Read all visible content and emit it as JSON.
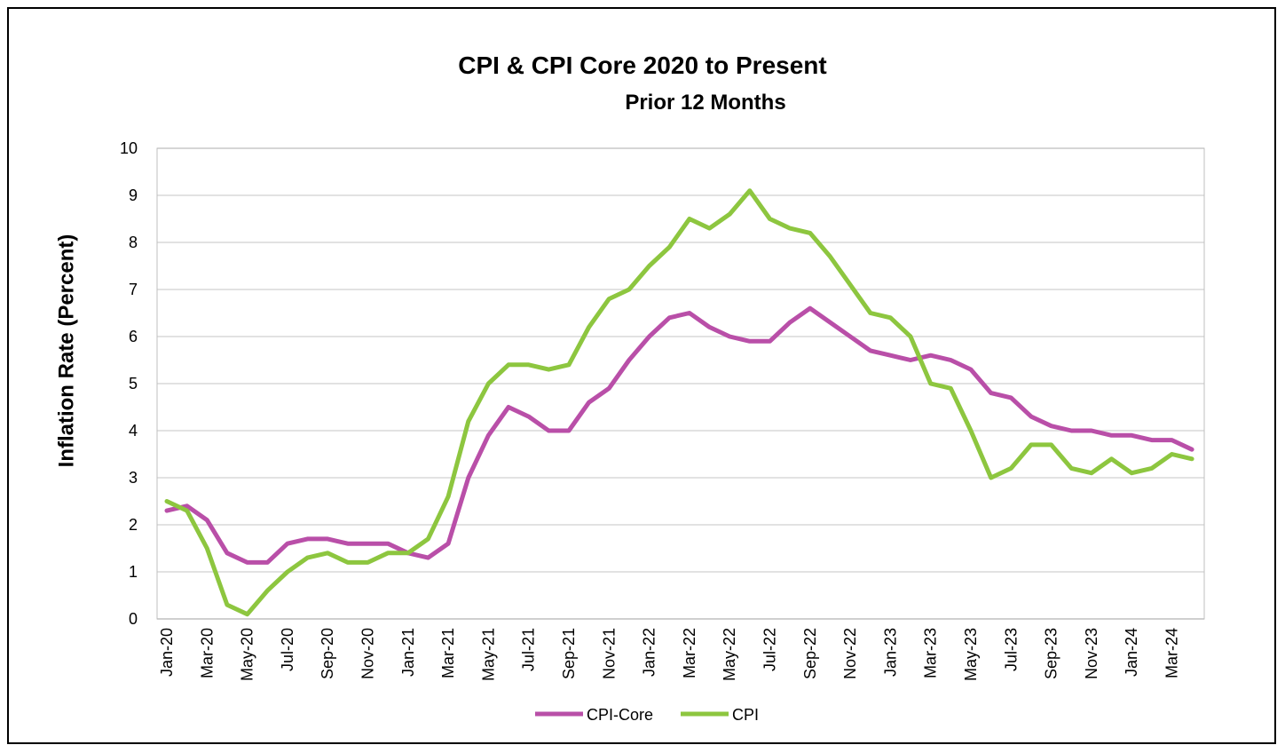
{
  "chart_data": {
    "type": "line",
    "title": "CPI & CPI Core  2020 to Present",
    "subtitle": "Prior 12 Months",
    "ylabel": "Inflation Rate (Percent)",
    "xlabel": "",
    "ylim": [
      0,
      10
    ],
    "yticks": [
      0,
      1,
      2,
      3,
      4,
      5,
      6,
      7,
      8,
      9,
      10
    ],
    "grid": true,
    "legend_position": "bottom",
    "x": [
      "Jan-20",
      "Feb-20",
      "Mar-20",
      "Apr-20",
      "May-20",
      "Jun-20",
      "Jul-20",
      "Aug-20",
      "Sep-20",
      "Oct-20",
      "Nov-20",
      "Dec-20",
      "Jan-21",
      "Feb-21",
      "Mar-21",
      "Apr-21",
      "May-21",
      "Jun-21",
      "Jul-21",
      "Aug-21",
      "Sep-21",
      "Oct-21",
      "Nov-21",
      "Dec-21",
      "Jan-22",
      "Feb-22",
      "Mar-22",
      "Apr-22",
      "May-22",
      "Jun-22",
      "Jul-22",
      "Aug-22",
      "Sep-22",
      "Oct-22",
      "Nov-22",
      "Dec-22",
      "Jan-23",
      "Feb-23",
      "Mar-23",
      "Apr-23",
      "May-23",
      "Jun-23",
      "Jul-23",
      "Aug-23",
      "Sep-23",
      "Oct-23",
      "Nov-23",
      "Dec-23",
      "Jan-24",
      "Feb-24",
      "Mar-24",
      "Apr-24"
    ],
    "tick_labels": [
      "Jan-20",
      "Mar-20",
      "May-20",
      "Jul-20",
      "Sep-20",
      "Nov-20",
      "Jan-21",
      "Mar-21",
      "May-21",
      "Jul-21",
      "Sep-21",
      "Nov-21",
      "Jan-22",
      "Mar-22",
      "May-22",
      "Jul-22",
      "Sep-22",
      "Nov-22",
      "Jan-23",
      "Mar-23",
      "May-23",
      "Jul-23",
      "Sep-23",
      "Nov-23",
      "Jan-24",
      "Mar-24"
    ],
    "series": [
      {
        "name": "CPI-Core",
        "color": "#b94fa8",
        "values": [
          2.3,
          2.4,
          2.1,
          1.4,
          1.2,
          1.2,
          1.6,
          1.7,
          1.7,
          1.6,
          1.6,
          1.6,
          1.4,
          1.3,
          1.6,
          3.0,
          3.9,
          4.5,
          4.3,
          4.0,
          4.0,
          4.6,
          4.9,
          5.5,
          6.0,
          6.4,
          6.5,
          6.2,
          6.0,
          5.9,
          5.9,
          6.3,
          6.6,
          6.3,
          6.0,
          5.7,
          5.6,
          5.5,
          5.6,
          5.5,
          5.3,
          4.8,
          4.7,
          4.3,
          4.1,
          4.0,
          4.0,
          3.9,
          3.9,
          3.8,
          3.8,
          3.6
        ]
      },
      {
        "name": "CPI",
        "color": "#8dc63f",
        "values": [
          2.5,
          2.3,
          1.5,
          0.3,
          0.1,
          0.6,
          1.0,
          1.3,
          1.4,
          1.2,
          1.2,
          1.4,
          1.4,
          1.7,
          2.6,
          4.2,
          5.0,
          5.4,
          5.4,
          5.3,
          5.4,
          6.2,
          6.8,
          7.0,
          7.5,
          7.9,
          8.5,
          8.3,
          8.6,
          9.1,
          8.5,
          8.3,
          8.2,
          7.7,
          7.1,
          6.5,
          6.4,
          6.0,
          5.0,
          4.9,
          4.0,
          3.0,
          3.2,
          3.7,
          3.7,
          3.2,
          3.1,
          3.4,
          3.1,
          3.2,
          3.5,
          3.4
        ]
      }
    ]
  }
}
